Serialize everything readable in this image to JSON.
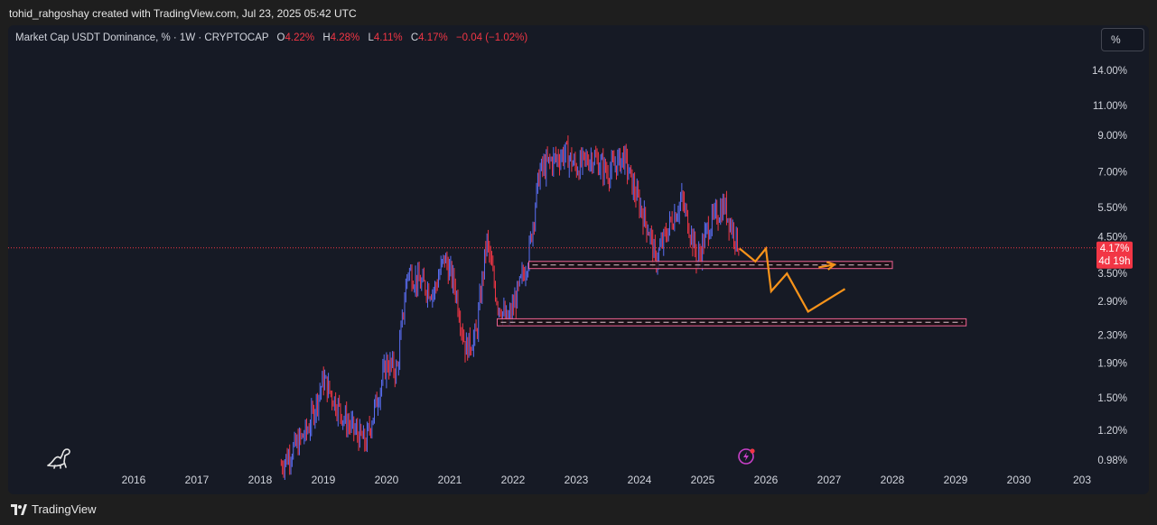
{
  "header": {
    "attribution": "tohid_rahgoshay created with TradingView.com, Jul 23, 2025 05:42 UTC"
  },
  "legend": {
    "title": "Market Cap USDT Dominance, % · 1W · CRYPTOCAP",
    "open_label": "O",
    "open_value": "4.22%",
    "high_label": "H",
    "high_value": "4.28%",
    "low_label": "L",
    "low_value": "4.11%",
    "close_label": "C",
    "close_value": "4.17%",
    "change": "−0.04 (−1.02%)"
  },
  "scale_button": {
    "label": "%"
  },
  "price_badge": {
    "price": "4.17%",
    "countdown": "4d 19h"
  },
  "footer": {
    "brand": "TradingView"
  },
  "colors": {
    "up": "#5b6ff5",
    "down": "#f23645",
    "background": "#161a25",
    "projection": "#f7931a",
    "zone_border": "#f06292",
    "zone_fill": "#1a0f14"
  },
  "chart_data": {
    "type": "candlestick",
    "title": "Market Cap USDT Dominance, % · 1W · CRYPTOCAP",
    "y_scale": "log",
    "y_ticks": [
      "14.00%",
      "11.00%",
      "9.00%",
      "7.00%",
      "5.50%",
      "4.50%",
      "3.50%",
      "2.90%",
      "2.30%",
      "1.90%",
      "1.50%",
      "1.20%",
      "0.98%"
    ],
    "y_tick_values": [
      14.0,
      11.0,
      9.0,
      7.0,
      5.5,
      4.5,
      3.5,
      2.9,
      2.3,
      1.9,
      1.5,
      1.2,
      0.98
    ],
    "x_ticks": [
      "2016",
      "2017",
      "2018",
      "2019",
      "2020",
      "2021",
      "2022",
      "2023",
      "2024",
      "2025",
      "2026",
      "2027",
      "2028",
      "2029",
      "2030",
      "203"
    ],
    "last_price": 4.17,
    "weekly_close_path": [
      {
        "date": "2018-04",
        "value": 0.95
      },
      {
        "date": "2018-09",
        "value": 1.2
      },
      {
        "date": "2018-12",
        "value": 1.7
      },
      {
        "date": "2019-04",
        "value": 1.3
      },
      {
        "date": "2019-08",
        "value": 1.1
      },
      {
        "date": "2019-12",
        "value": 1.9
      },
      {
        "date": "2020-02",
        "value": 1.8
      },
      {
        "date": "2020-04",
        "value": 3.6
      },
      {
        "date": "2020-06",
        "value": 3.3
      },
      {
        "date": "2020-09",
        "value": 3.1
      },
      {
        "date": "2020-11",
        "value": 3.9
      },
      {
        "date": "2021-01",
        "value": 3.2
      },
      {
        "date": "2021-03",
        "value": 2.1
      },
      {
        "date": "2021-05",
        "value": 2.3
      },
      {
        "date": "2021-07",
        "value": 4.4
      },
      {
        "date": "2021-09",
        "value": 2.9
      },
      {
        "date": "2021-11",
        "value": 2.5
      },
      {
        "date": "2022-01",
        "value": 3.1
      },
      {
        "date": "2022-03",
        "value": 4.0
      },
      {
        "date": "2022-05",
        "value": 7.0
      },
      {
        "date": "2022-07",
        "value": 7.5
      },
      {
        "date": "2022-10",
        "value": 8.0
      },
      {
        "date": "2022-12",
        "value": 7.2
      },
      {
        "date": "2023-03",
        "value": 7.8
      },
      {
        "date": "2023-06",
        "value": 7.0
      },
      {
        "date": "2023-09",
        "value": 7.8
      },
      {
        "date": "2023-11",
        "value": 6.2
      },
      {
        "date": "2024-02",
        "value": 4.6
      },
      {
        "date": "2024-03",
        "value": 3.8
      },
      {
        "date": "2024-06",
        "value": 5.0
      },
      {
        "date": "2024-08",
        "value": 5.8
      },
      {
        "date": "2024-10",
        "value": 4.5
      },
      {
        "date": "2024-11",
        "value": 3.8
      },
      {
        "date": "2025-01",
        "value": 4.8
      },
      {
        "date": "2025-04",
        "value": 5.6
      },
      {
        "date": "2025-06",
        "value": 4.6
      },
      {
        "date": "2025-07",
        "value": 4.17
      }
    ],
    "support_zones": [
      {
        "from": "2022-03",
        "to": "2028-00",
        "low": 3.62,
        "high": 3.8
      },
      {
        "from": "2021-09",
        "to": "2029-02",
        "low": 2.45,
        "high": 2.57
      }
    ],
    "projection_path": [
      {
        "date": "2025-07",
        "value": 4.15
      },
      {
        "date": "2025-10",
        "value": 3.8
      },
      {
        "date": "2025-12",
        "value": 4.15
      },
      {
        "date": "2026-01",
        "value": 3.1
      },
      {
        "date": "2026-04",
        "value": 3.5
      },
      {
        "date": "2026-08",
        "value": 2.7
      },
      {
        "date": "2027-03",
        "value": 3.15
      }
    ],
    "projection_arrow": [
      {
        "date": "2026-10",
        "value": 3.65
      },
      {
        "date": "2027-01",
        "value": 3.72
      }
    ]
  }
}
